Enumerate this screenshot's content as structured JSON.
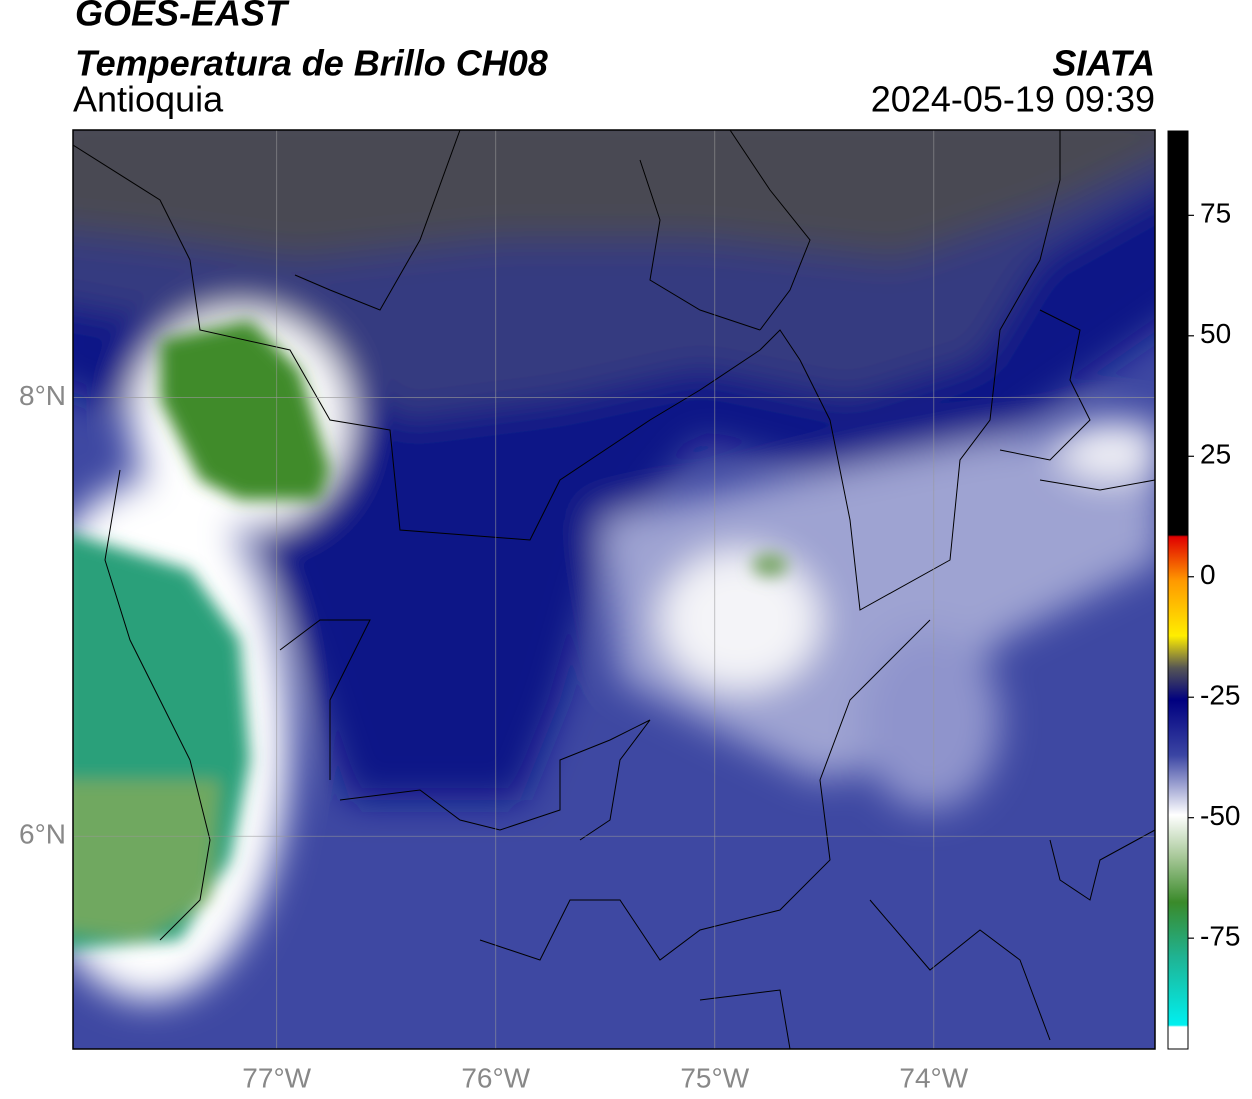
{
  "header": {
    "title": "GOES-EAST",
    "subtitle": "Temperatura de Brillo CH08",
    "region": "Antioquia",
    "source": "SIATA",
    "datetime": "2024-05-19 09:39"
  },
  "map": {
    "xlim": [
      -77.93,
      -72.99
    ],
    "ylim": [
      5.03,
      9.22
    ],
    "xticks": [
      {
        "value": -77,
        "label": "77°W"
      },
      {
        "value": -76,
        "label": "76°W"
      },
      {
        "value": -75,
        "label": "75°W"
      },
      {
        "value": -74,
        "label": "74°W"
      }
    ],
    "yticks": [
      {
        "value": 6,
        "label": "6°N"
      },
      {
        "value": 8,
        "label": "8°N"
      }
    ],
    "grid": true
  },
  "colorbar": {
    "lim": [
      -98,
      92.5
    ],
    "ticks": [
      -75,
      -50,
      -25,
      0,
      25,
      50,
      75
    ]
  }
}
